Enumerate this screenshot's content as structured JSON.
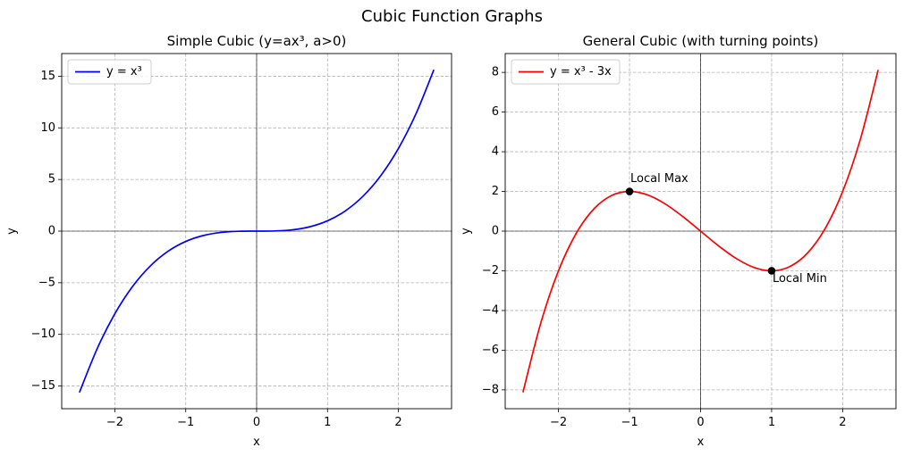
{
  "figure": {
    "title": "Cubic Function Graphs"
  },
  "chart_data": [
    {
      "type": "line",
      "title": "Simple Cubic (y=ax³, a>0)",
      "xlabel": "x",
      "ylabel": "y",
      "xlim": [
        -2.75,
        2.75
      ],
      "ylim": [
        -17.2,
        17.2
      ],
      "xticks": [
        -2,
        -1,
        0,
        1,
        2
      ],
      "xtick_labels": [
        "−2",
        "−1",
        "0",
        "1",
        "2"
      ],
      "yticks": [
        -15,
        -10,
        -5,
        0,
        5,
        10,
        15
      ],
      "ytick_labels": [
        "−15",
        "−10",
        "−5",
        "0",
        "5",
        "10",
        "15"
      ],
      "grid": true,
      "grid_style": "dashed",
      "reference_lines": {
        "x0": true,
        "y0": true
      },
      "legend_position": "upper-left",
      "series": [
        {
          "name": "y = x³",
          "color": "#0000ff",
          "x": [
            -2.5,
            -2.25,
            -2.0,
            -1.75,
            -1.5,
            -1.25,
            -1.0,
            -0.75,
            -0.5,
            -0.25,
            0.0,
            0.25,
            0.5,
            0.75,
            1.0,
            1.25,
            1.5,
            1.75,
            2.0,
            2.25,
            2.5
          ],
          "y": [
            -15.625,
            -11.391,
            -8.0,
            -5.359,
            -3.375,
            -1.953,
            -1.0,
            -0.422,
            -0.125,
            -0.016,
            0.0,
            0.016,
            0.125,
            0.422,
            1.0,
            1.953,
            3.375,
            5.359,
            8.0,
            11.391,
            15.625
          ]
        }
      ],
      "annotations": []
    },
    {
      "type": "line",
      "title": "General Cubic (with turning points)",
      "xlabel": "x",
      "ylabel": "y",
      "xlim": [
        -2.75,
        2.75
      ],
      "ylim": [
        -8.95,
        8.95
      ],
      "xticks": [
        -2,
        -1,
        0,
        1,
        2
      ],
      "xtick_labels": [
        "−2",
        "−1",
        "0",
        "1",
        "2"
      ],
      "yticks": [
        -8,
        -6,
        -4,
        -2,
        0,
        2,
        4,
        6,
        8
      ],
      "ytick_labels": [
        "−8",
        "−6",
        "−4",
        "−2",
        "0",
        "2",
        "4",
        "6",
        "8"
      ],
      "grid": true,
      "grid_style": "dashed",
      "reference_lines": {
        "x0": true,
        "y0": true
      },
      "legend_position": "upper-left",
      "series": [
        {
          "name": "y = x³ - 3x",
          "color": "#ff0000",
          "x": [
            -2.5,
            -2.25,
            -2.0,
            -1.75,
            -1.5,
            -1.25,
            -1.0,
            -0.75,
            -0.5,
            -0.25,
            0.0,
            0.25,
            0.5,
            0.75,
            1.0,
            1.25,
            1.5,
            1.75,
            2.0,
            2.25,
            2.5
          ],
          "y": [
            -8.125,
            -4.641,
            -2.0,
            -0.109,
            1.125,
            1.797,
            2.0,
            1.828,
            1.375,
            0.734,
            0.0,
            -0.734,
            -1.375,
            -1.828,
            -2.0,
            -1.797,
            -1.125,
            0.109,
            2.0,
            4.641,
            8.125
          ]
        }
      ],
      "points": [
        {
          "x": -1,
          "y": 2,
          "color": "#000000"
        },
        {
          "x": 1,
          "y": -2,
          "color": "#000000"
        }
      ],
      "annotations": [
        {
          "text": "Local Max",
          "x": -1,
          "y": 2,
          "placement": "above-right"
        },
        {
          "text": "Local Min",
          "x": 1,
          "y": -2,
          "placement": "below-right"
        }
      ]
    }
  ]
}
